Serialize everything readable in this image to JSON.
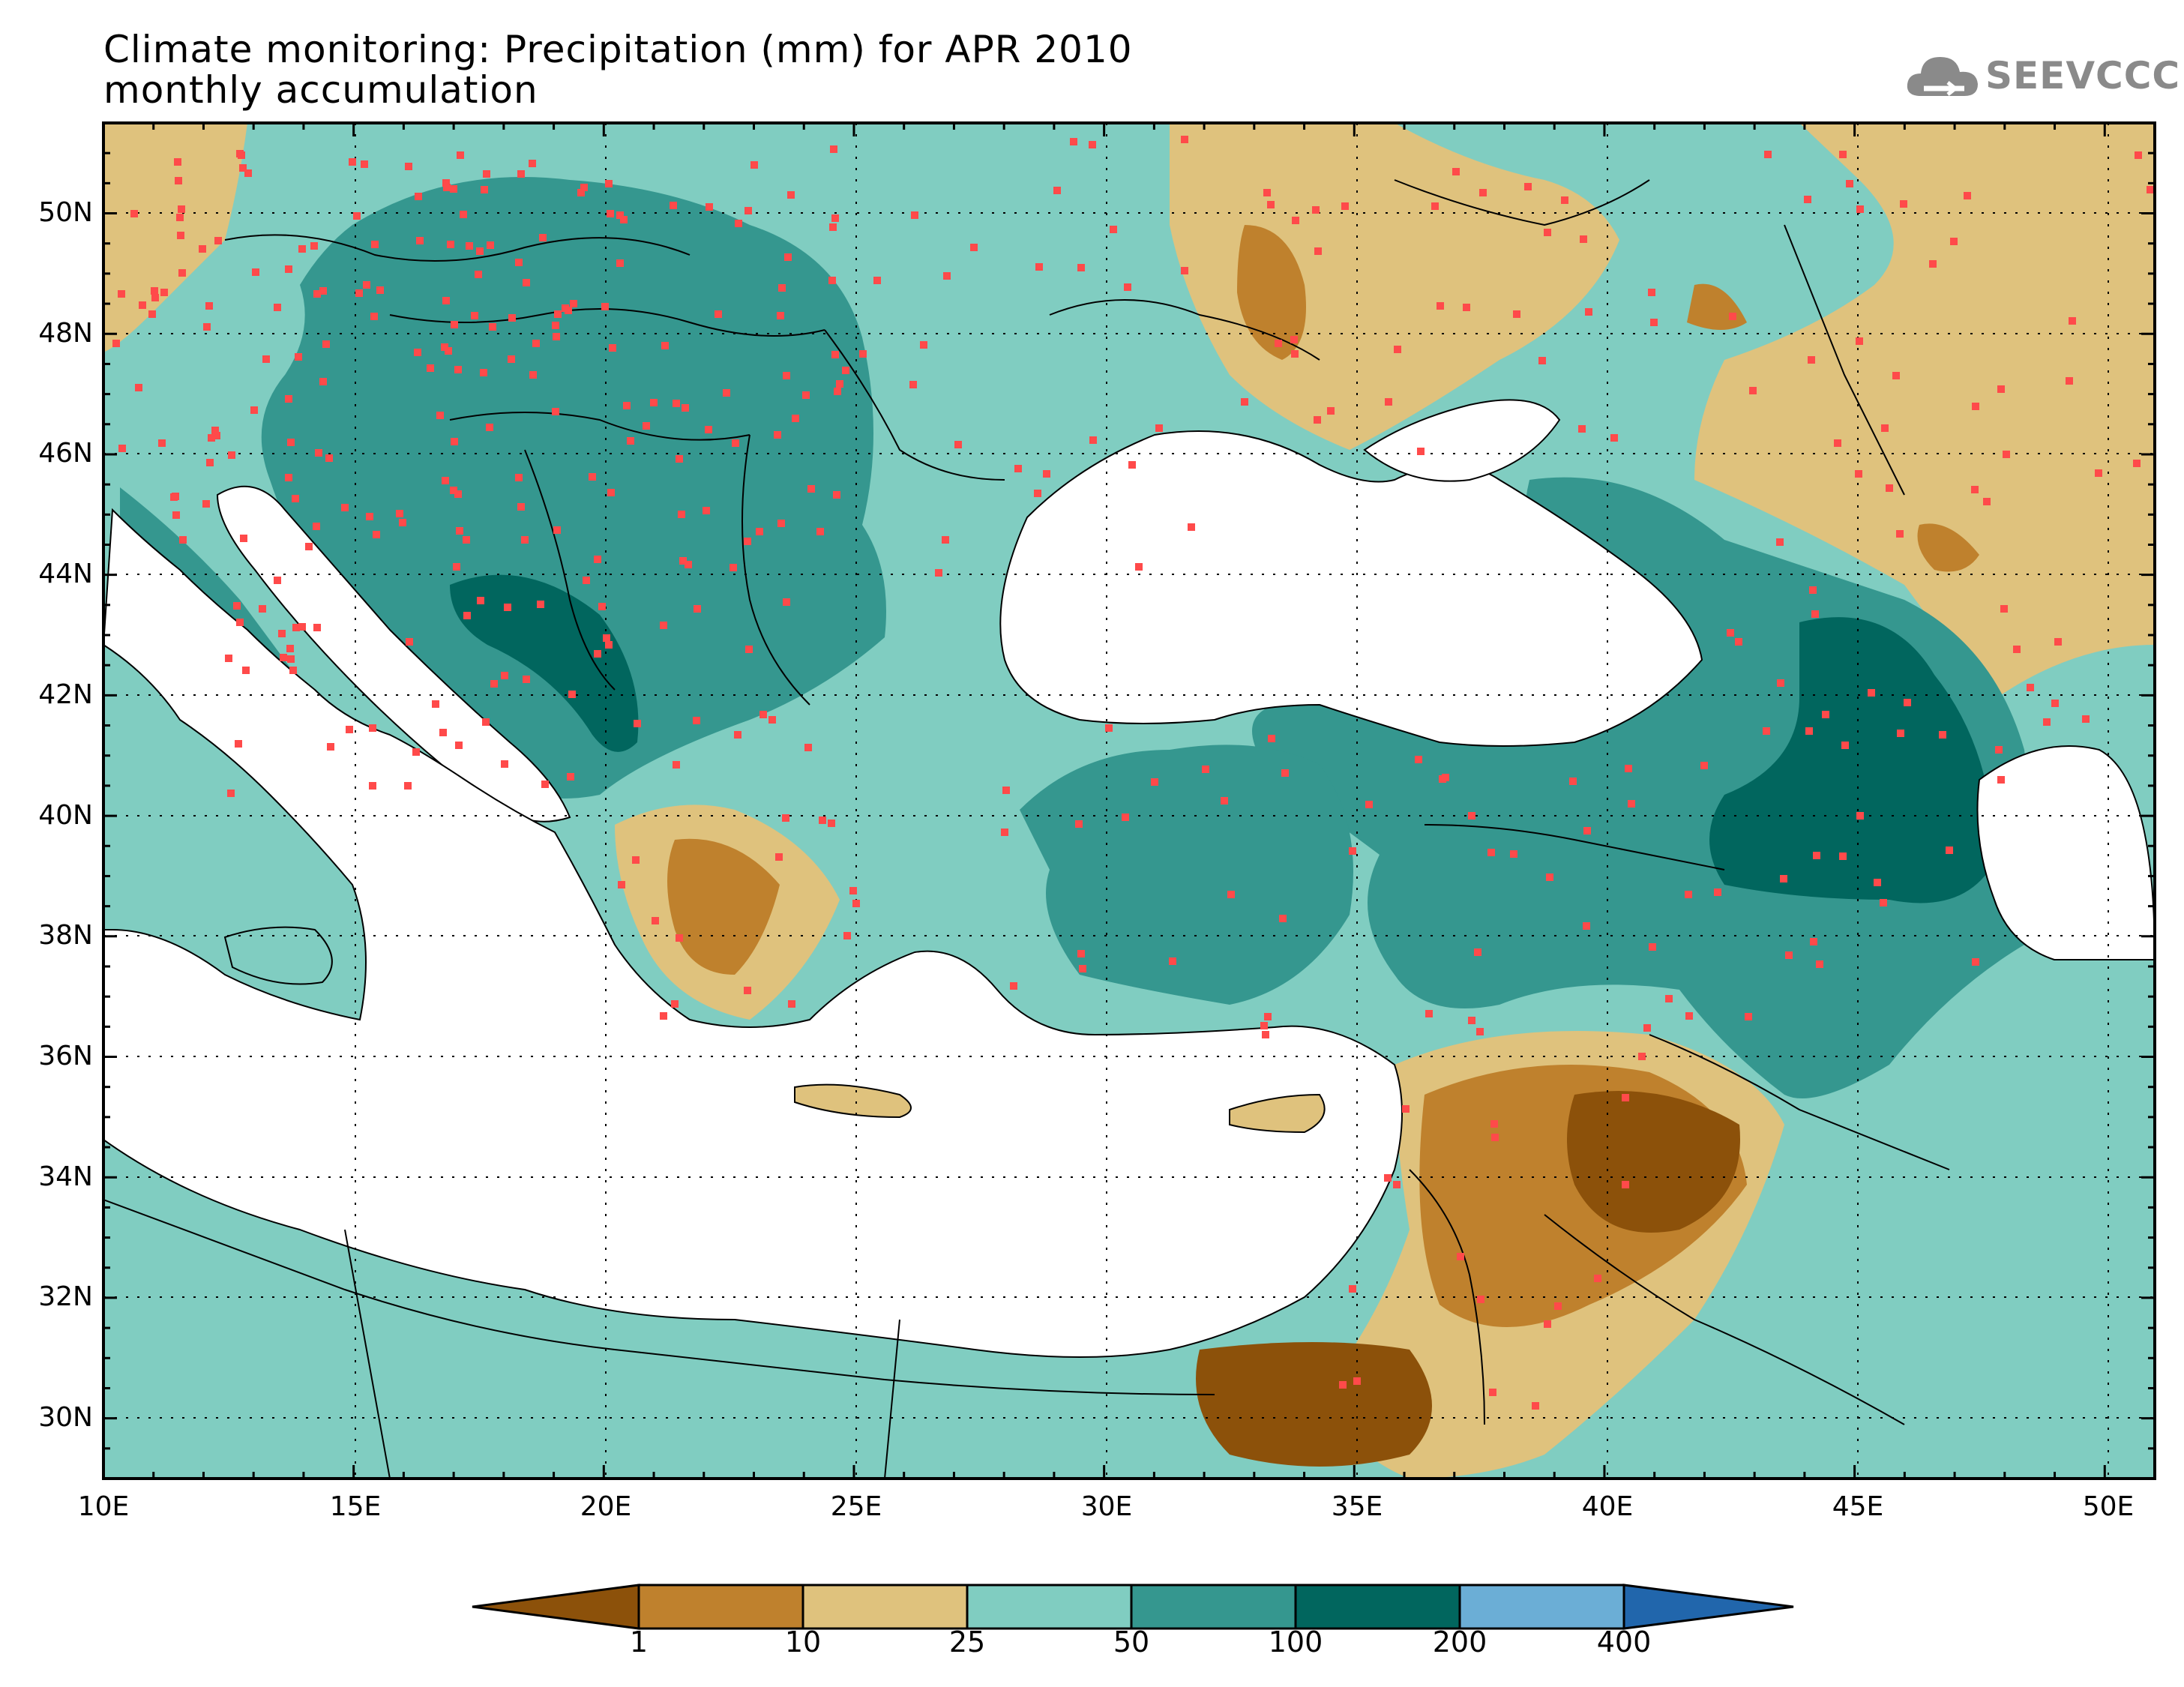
{
  "title": {
    "line1": "Climate monitoring: Precipitation (mm) for APR 2010",
    "line2": "monthly accumulation"
  },
  "logo": {
    "text": "SEEVCCC",
    "icon": "cloud-icon"
  },
  "map": {
    "lon_range": [
      10,
      51
    ],
    "lat_range": [
      29,
      51.5
    ],
    "x_ticks": [
      "10E",
      "15E",
      "20E",
      "25E",
      "30E",
      "35E",
      "40E",
      "45E",
      "50E"
    ],
    "y_ticks": [
      "30N",
      "32N",
      "34N",
      "36N",
      "38N",
      "40N",
      "42N",
      "44N",
      "46N",
      "48N",
      "50N"
    ],
    "grid": "dotted",
    "station_marker_color": "#ff4a4a"
  },
  "colorbar": {
    "levels": [
      "1",
      "10",
      "25",
      "50",
      "100",
      "200",
      "400"
    ],
    "colors": [
      "#8c510a",
      "#bf812d",
      "#dfc27d",
      "#80cdc1",
      "#35978f",
      "#01665e",
      "#6baed6",
      "#2166ac"
    ],
    "extend": "both"
  }
}
